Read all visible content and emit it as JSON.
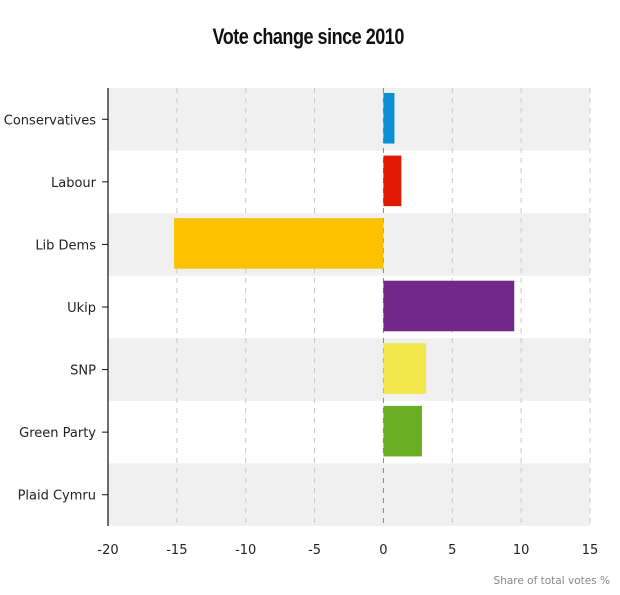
{
  "chart_data": {
    "type": "bar",
    "orientation": "horizontal",
    "title": "Vote change since 2010",
    "xlabel": "Share of total votes %",
    "ylabel": "",
    "xlim": [
      -20,
      15
    ],
    "xticks": [
      -20,
      -15,
      -10,
      -5,
      0,
      5,
      10,
      15
    ],
    "grid": true,
    "categories": [
      "Conservatives",
      "Labour",
      "Lib Dems",
      "Ukip",
      "SNP",
      "Green Party",
      "Plaid Cymru"
    ],
    "values": [
      0.8,
      1.3,
      -15.2,
      9.5,
      3.1,
      2.8,
      0
    ],
    "colors": [
      "#0a8fd4",
      "#e01a00",
      "#fcc200",
      "#72288a",
      "#f2e74b",
      "#6aaf23",
      "#3d8f3d"
    ],
    "band_color": "#f0f0f0"
  }
}
